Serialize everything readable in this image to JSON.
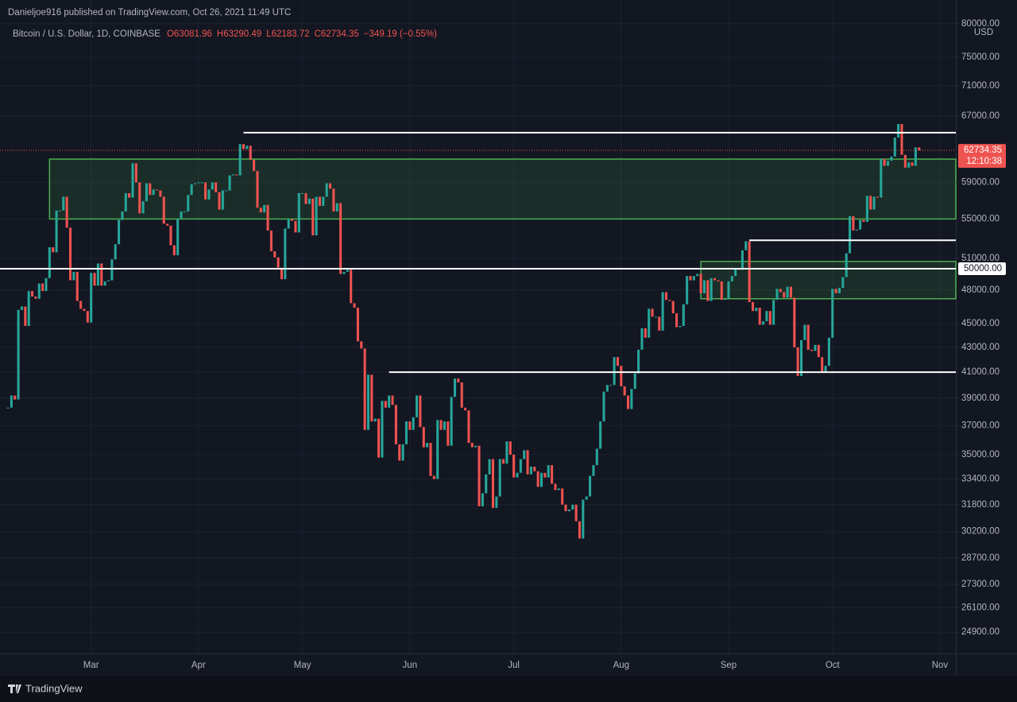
{
  "chart_data": {
    "type": "candlestick",
    "publisher_line": "Danieljoe916 published on TradingView.com, Oct 26, 2021 11:49 UTC",
    "symbol": "Bitcoin / U.S. Dollar, 1D, COINBASE",
    "ohlc_legend": [
      {
        "text": "O63081.96",
        "color": "#ef5350"
      },
      {
        "text": "H63290.49",
        "color": "#ef5350"
      },
      {
        "text": "L62183.72",
        "color": "#ef5350"
      },
      {
        "text": "C62734.35",
        "color": "#ef5350"
      },
      {
        "text": "−349.19 (−0.55%)",
        "color": "#ef5350"
      }
    ],
    "currency": "USD",
    "last_price": {
      "value": 62734.35,
      "label": "62734.35",
      "countdown": "12:10:38",
      "color": "#ef5350"
    },
    "up_color": "#26a69a",
    "down_color": "#ef5350",
    "log_scale": true,
    "grid": true,
    "ylim": [
      23900,
      81200
    ],
    "yticks": [
      {
        "value": 80000,
        "label": "80000.00"
      },
      {
        "value": 75000,
        "label": "75000.00"
      },
      {
        "value": 71000,
        "label": "71000.00"
      },
      {
        "value": 67000,
        "label": "67000.00"
      },
      {
        "value": 59000,
        "label": "59000.00"
      },
      {
        "value": 55000,
        "label": "55000.00"
      },
      {
        "value": 51000,
        "label": "51000.00"
      },
      {
        "value": 48000,
        "label": "48000.00"
      },
      {
        "value": 45000,
        "label": "45000.00"
      },
      {
        "value": 43000,
        "label": "43000.00"
      },
      {
        "value": 41000,
        "label": "41000.00"
      },
      {
        "value": 39000,
        "label": "39000.00"
      },
      {
        "value": 37000,
        "label": "37000.00"
      },
      {
        "value": 35000,
        "label": "35000.00"
      },
      {
        "value": 33400,
        "label": "33400.00"
      },
      {
        "value": 31800,
        "label": "31800.00"
      },
      {
        "value": 30200,
        "label": "30200.00"
      },
      {
        "value": 28700,
        "label": "28700.00"
      },
      {
        "value": 27300,
        "label": "27300.00"
      },
      {
        "value": 26100,
        "label": "26100.00"
      },
      {
        "value": 24900,
        "label": "24900.00"
      }
    ],
    "xlim": [
      -2.3,
      273.6
    ],
    "xticks": [
      {
        "value": 24,
        "label": "Mar"
      },
      {
        "value": 55,
        "label": "Apr"
      },
      {
        "value": 85,
        "label": "May"
      },
      {
        "value": 116,
        "label": "Jun"
      },
      {
        "value": 146,
        "label": "Jul"
      },
      {
        "value": 177,
        "label": "Aug"
      },
      {
        "value": 208,
        "label": "Sep"
      },
      {
        "value": 238,
        "label": "Oct"
      },
      {
        "value": 269,
        "label": "Nov"
      }
    ],
    "levels": [
      {
        "value": 64900,
        "start": 68
      },
      {
        "value": 50000,
        "start": -2.3,
        "label": "50000.00"
      },
      {
        "value": 52800,
        "start": 214
      },
      {
        "value": 41000,
        "start": 110
      }
    ],
    "zones": [
      {
        "low": 55000,
        "high": 61700,
        "start": 12
      },
      {
        "low": 47200,
        "high": 50700,
        "start": 200
      }
    ],
    "values": [
      38300,
      39200,
      38900,
      46200,
      46500,
      44800,
      47900,
      47400,
      47200,
      48600,
      47900,
      49100,
      52100,
      51600,
      55900,
      55900,
      57400,
      54100,
      48900,
      49700,
      47000,
      46300,
      46100,
      45100,
      49600,
      48400,
      50500,
      48400,
      48800,
      48900,
      50900,
      52400,
      54900,
      55800,
      57800,
      57300,
      61200,
      59000,
      55600,
      56900,
      58900,
      57600,
      58200,
      58100,
      57400,
      54500,
      54300,
      52300,
      51300,
      55000,
      55800,
      55800,
      57600,
      58800,
      58900,
      59000,
      59000,
      57100,
      58200,
      59000,
      57900,
      56000,
      58100,
      58100,
      59800,
      59900,
      59800,
      63500,
      62900,
      63300,
      61600,
      60300,
      56200,
      55700,
      56500,
      53800,
      51700,
      51100,
      50100,
      49000,
      54000,
      55000,
      54800,
      53600,
      57800,
      57800,
      56600,
      57200,
      53300,
      57400,
      56400,
      57400,
      58900,
      58300,
      55800,
      56700,
      49500,
      49700,
      49900,
      46800,
      46400,
      43500,
      42900,
      36700,
      40800,
      37300,
      37500,
      34800,
      38800,
      38300,
      39200,
      38500,
      35700,
      34600,
      35700,
      37300,
      36700,
      37600,
      39200,
      36900,
      35500,
      35800,
      33600,
      33400,
      37400,
      36700,
      37300,
      35600,
      39100,
      40500,
      40200,
      38300,
      38100,
      35800,
      35500,
      35600,
      31700,
      32500,
      33700,
      34700,
      31600,
      32300,
      34700,
      34400,
      35900,
      35000,
      33500,
      33800,
      34700,
      35300,
      33700,
      34200,
      33900,
      32900,
      33800,
      33500,
      34300,
      33100,
      32700,
      32800,
      31800,
      31400,
      31500,
      31800,
      30800,
      29800,
      32100,
      32300,
      33600,
      34300,
      35400,
      37300,
      39500,
      40000,
      40000,
      42200,
      41500,
      39900,
      39200,
      38200,
      39700,
      40900,
      42800,
      44600,
      43800,
      46300,
      45600,
      45600,
      44400,
      47800,
      47100,
      47000,
      45900,
      44700,
      44800,
      46700,
      49300,
      48900,
      49300,
      49500,
      47700,
      48900,
      47000,
      49100,
      48900,
      48800,
      47100,
      47200,
      48800,
      49300,
      50000,
      49900,
      51800,
      52700,
      46900,
      46100,
      46400,
      44900,
      45200,
      46100,
      44900,
      47100,
      48100,
      47800,
      47300,
      48300,
      47300,
      43000,
      40700,
      43600,
      44900,
      42800,
      42700,
      43200,
      42200,
      41000,
      41500,
      43800,
      48100,
      47700,
      48200,
      49200,
      51500,
      55300,
      53800,
      53900,
      54900,
      54700,
      57500,
      56000,
      57400,
      57300,
      61700,
      60900,
      61500,
      62000,
      64300,
      66000,
      62200,
      60700,
      61300,
      60900,
      63100,
      62734.35
    ],
    "footer_brand": "TradingView"
  }
}
